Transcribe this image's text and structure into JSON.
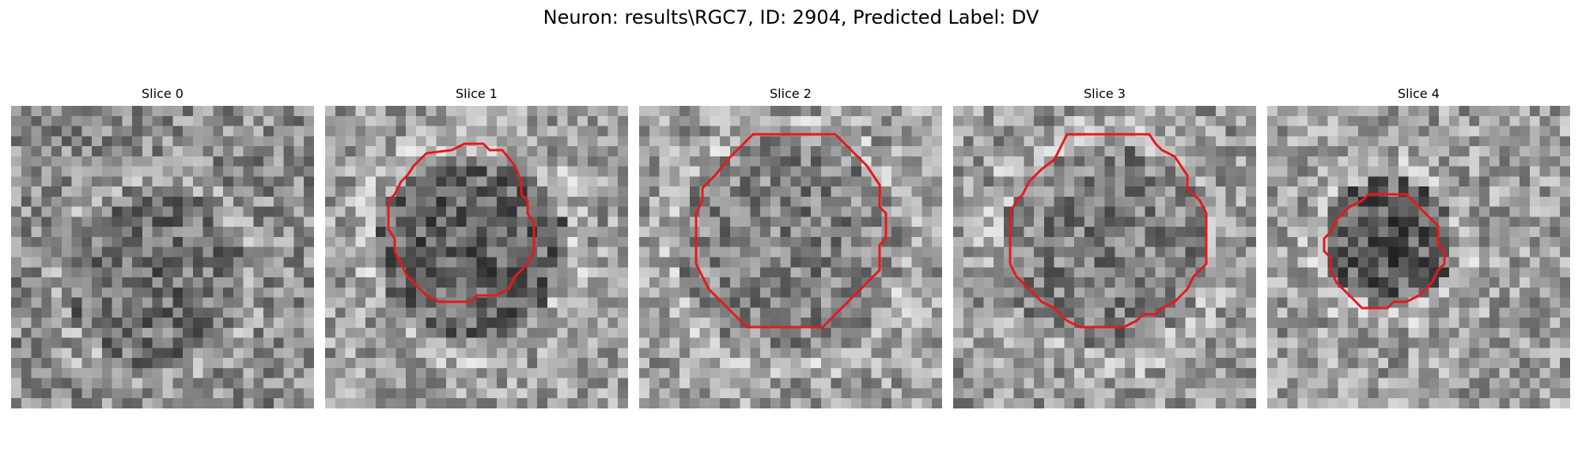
{
  "figure": {
    "title": "Neuron: results\\RGC7, ID: 2904, Predicted Label: DV"
  },
  "panels": [
    {
      "title": "Slice 0",
      "has_contour": false
    },
    {
      "title": "Slice 1",
      "has_contour": true
    },
    {
      "title": "Slice 2",
      "has_contour": true
    },
    {
      "title": "Slice 3",
      "has_contour": true
    },
    {
      "title": "Slice 4",
      "has_contour": true
    }
  ],
  "colors": {
    "contour": "#e41a1c",
    "background": "#ffffff"
  },
  "image": {
    "colormap": "gray",
    "grid": 30
  }
}
